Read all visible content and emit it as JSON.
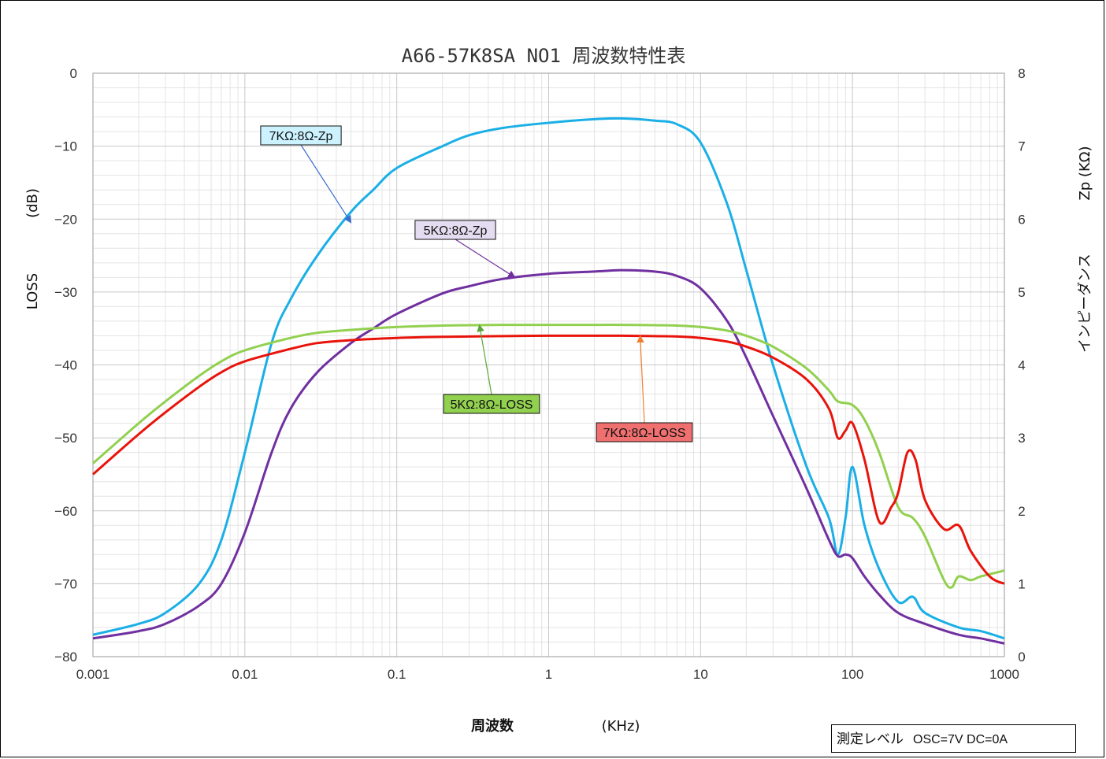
{
  "chart_data": {
    "type": "line",
    "title": "A66-57K8SA NO1 周波数特性表",
    "xlabel_main": "周波数",
    "xlabel_unit": "(KHz)",
    "ylabel_left_main": "LOSS",
    "ylabel_left_unit": "(dB)",
    "ylabel_right_main": "インピーダンス",
    "ylabel_right_unit": "Zp (KΩ)",
    "x_scale": "log",
    "xlim": [
      0.001,
      1000
    ],
    "ylim_left": [
      -80,
      0
    ],
    "ylim_right": [
      0,
      8
    ],
    "grid": true,
    "x_ticks": [
      "0.001",
      "0.01",
      "0.1",
      "1",
      "10",
      "100",
      "1000"
    ],
    "y_left_ticks": [
      "0",
      "−10",
      "−20",
      "−30",
      "−40",
      "−50",
      "−60",
      "−70",
      "−80"
    ],
    "y_right_ticks": [
      "8",
      "7",
      "6",
      "5",
      "4",
      "3",
      "2",
      "1",
      "0"
    ],
    "series": [
      {
        "name": "7KΩ:8Ω-Zp",
        "axis": "right",
        "color": "#1aafe6",
        "label_bg": "#ccf2ff",
        "x": [
          0.001,
          0.002,
          0.003,
          0.005,
          0.007,
          0.01,
          0.015,
          0.02,
          0.03,
          0.05,
          0.07,
          0.1,
          0.2,
          0.3,
          0.5,
          1,
          2,
          3,
          5,
          7,
          10,
          15,
          20,
          30,
          50,
          70,
          80,
          90,
          100,
          120,
          150,
          200,
          250,
          300,
          500,
          700,
          1000
        ],
        "y": [
          0.3,
          0.45,
          0.6,
          1.0,
          1.6,
          2.8,
          4.3,
          4.9,
          5.5,
          6.1,
          6.4,
          6.7,
          7.0,
          7.15,
          7.25,
          7.32,
          7.37,
          7.38,
          7.35,
          7.3,
          7.05,
          6.2,
          5.3,
          4.0,
          2.6,
          1.9,
          1.4,
          1.9,
          2.6,
          1.8,
          1.2,
          0.75,
          0.82,
          0.6,
          0.4,
          0.35,
          0.25
        ]
      },
      {
        "name": "5KΩ:8Ω-Zp",
        "axis": "right",
        "color": "#7030a0",
        "label_bg": "#e4dcf0",
        "x": [
          0.001,
          0.002,
          0.003,
          0.005,
          0.007,
          0.01,
          0.015,
          0.02,
          0.03,
          0.05,
          0.07,
          0.1,
          0.2,
          0.3,
          0.5,
          1,
          2,
          3,
          5,
          7,
          10,
          15,
          20,
          30,
          50,
          70,
          80,
          90,
          100,
          120,
          150,
          200,
          300,
          500,
          700,
          1000
        ],
        "y": [
          0.25,
          0.35,
          0.45,
          0.7,
          1.0,
          1.7,
          2.8,
          3.4,
          3.9,
          4.3,
          4.5,
          4.7,
          4.98,
          5.08,
          5.18,
          5.25,
          5.28,
          5.3,
          5.28,
          5.22,
          5.05,
          4.6,
          4.1,
          3.3,
          2.3,
          1.6,
          1.38,
          1.4,
          1.35,
          1.1,
          0.85,
          0.6,
          0.45,
          0.3,
          0.25,
          0.18
        ]
      },
      {
        "name": "5KΩ:8Ω-LOSS",
        "axis": "left",
        "color": "#92d050",
        "label_bg": "#92d050",
        "x": [
          0.001,
          0.002,
          0.003,
          0.005,
          0.007,
          0.01,
          0.02,
          0.03,
          0.05,
          0.1,
          0.2,
          0.3,
          0.5,
          1,
          2,
          3,
          5,
          7,
          10,
          15,
          20,
          30,
          50,
          70,
          80,
          100,
          120,
          150,
          200,
          250,
          300,
          400,
          450,
          500,
          600,
          700,
          1000
        ],
        "y": [
          -53.5,
          -48,
          -45,
          -41.5,
          -39.5,
          -38,
          -36.3,
          -35.6,
          -35.2,
          -34.8,
          -34.6,
          -34.55,
          -34.5,
          -34.5,
          -34.5,
          -34.5,
          -34.55,
          -34.6,
          -34.8,
          -35.3,
          -36,
          -37.5,
          -40.5,
          -43.5,
          -45,
          -45.5,
          -47.5,
          -52,
          -59.5,
          -61,
          -63.5,
          -69.5,
          -70.5,
          -69,
          -69.5,
          -69,
          -68.2
        ]
      },
      {
        "name": "7KΩ:8Ω-LOSS",
        "axis": "left",
        "color": "#e8140c",
        "label_bg": "#f07070",
        "x": [
          0.001,
          0.002,
          0.003,
          0.005,
          0.007,
          0.01,
          0.02,
          0.03,
          0.05,
          0.1,
          0.2,
          0.3,
          0.5,
          1,
          2,
          3,
          5,
          7,
          10,
          15,
          20,
          30,
          50,
          70,
          80,
          90,
          100,
          120,
          150,
          180,
          200,
          230,
          260,
          300,
          400,
          500,
          600,
          800,
          1000
        ],
        "y": [
          -55,
          -49.5,
          -46.5,
          -43,
          -41,
          -39.5,
          -37.8,
          -37,
          -36.6,
          -36.3,
          -36.15,
          -36.1,
          -36.05,
          -36,
          -36,
          -36,
          -36.05,
          -36.1,
          -36.3,
          -36.8,
          -37.5,
          -39,
          -42,
          -46,
          -50,
          -49,
          -48,
          -53,
          -61.5,
          -59.5,
          -57.5,
          -52,
          -53,
          -58.5,
          -62.5,
          -62,
          -65.5,
          -69,
          -70
        ]
      }
    ],
    "callouts": [
      {
        "text": "7KΩ:8Ω-Zp",
        "x": 0.05,
        "axis": "right",
        "y": 5.95
      },
      {
        "text": "5KΩ:8Ω-Zp",
        "x": 0.6,
        "axis": "right",
        "y": 5.2
      },
      {
        "text": "5KΩ:8Ω-LOSS",
        "x": 0.35,
        "axis": "left",
        "y": -34.5
      },
      {
        "text": "7KΩ:8Ω-LOSS",
        "x": 4.0,
        "axis": "left",
        "y": -36
      }
    ]
  },
  "measure_note": {
    "label": "測定レベル",
    "value": "OSC=7V DC=0A"
  }
}
